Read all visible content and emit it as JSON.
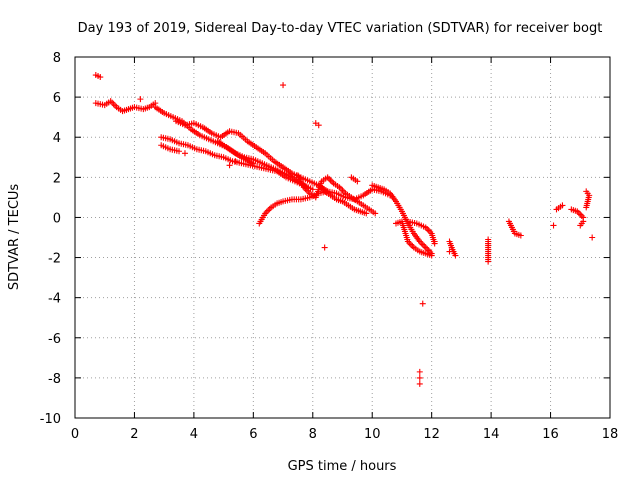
{
  "chart_data": {
    "type": "scatter",
    "title": "Day 193 of 2019, Sidereal Day-to-day VTEC variation (SDTVAR) for receiver bogt",
    "xlabel": "GPS time / hours",
    "ylabel": "SDTVAR / TECUs",
    "xlim": [
      0,
      18
    ],
    "ylim": [
      -10,
      8
    ],
    "xticks": [
      0,
      2,
      4,
      6,
      8,
      10,
      12,
      14,
      16,
      18
    ],
    "yticks": [
      -10,
      -8,
      -6,
      -4,
      -2,
      0,
      2,
      4,
      6,
      8
    ],
    "grid": true,
    "marker": "+",
    "color": "#ff0000",
    "series": [
      {
        "name": "SDTVAR",
        "segments": [
          {
            "x": [
              0.7,
              0.85
            ],
            "y": [
              7.1,
              7.0
            ]
          },
          {
            "x": [
              0.7,
              1.0,
              1.2,
              1.4,
              1.6,
              1.8,
              2.0,
              2.3,
              2.5,
              2.7
            ],
            "y": [
              5.7,
              5.6,
              5.8,
              5.5,
              5.3,
              5.4,
              5.5,
              5.4,
              5.5,
              5.7
            ]
          },
          {
            "x": [
              2.7,
              3.0,
              3.3,
              3.6,
              3.9,
              4.2,
              4.5,
              4.8,
              5.1,
              5.4,
              5.7,
              6.0,
              6.3,
              6.6,
              6.9,
              7.2,
              7.5,
              7.8
            ],
            "y": [
              5.5,
              5.2,
              5.0,
              4.8,
              4.4,
              4.1,
              3.9,
              3.7,
              3.5,
              3.2,
              3.0,
              2.9,
              2.7,
              2.5,
              2.3,
              2.1,
              1.8,
              1.5
            ]
          },
          {
            "x": [
              2.9,
              3.2,
              3.5,
              3.8,
              4.1,
              4.4,
              4.7,
              5.0,
              5.3,
              5.6,
              5.9,
              6.2,
              6.5,
              6.8,
              7.1,
              7.4,
              7.7,
              8.0
            ],
            "y": [
              4.0,
              3.9,
              3.7,
              3.6,
              3.4,
              3.3,
              3.1,
              3.0,
              2.8,
              2.7,
              2.6,
              2.5,
              2.4,
              2.3,
              2.0,
              1.8,
              1.6,
              1.4
            ]
          },
          {
            "x": [
              3.4,
              3.7,
              4.0,
              4.3,
              4.6,
              4.9,
              5.2,
              5.5,
              5.8,
              6.1,
              6.4,
              6.7,
              7.0,
              7.3,
              7.6,
              7.9,
              8.2,
              8.5
            ],
            "y": [
              4.8,
              4.6,
              4.7,
              4.5,
              4.2,
              4.0,
              4.3,
              4.2,
              3.8,
              3.5,
              3.2,
              2.8,
              2.5,
              2.2,
              2.0,
              1.8,
              1.6,
              1.3
            ]
          },
          {
            "x": [
              2.9,
              3.2,
              3.5
            ],
            "y": [
              3.6,
              3.4,
              3.3
            ]
          },
          {
            "x": [
              4.8,
              5.2,
              5.6,
              6.0
            ],
            "y": [
              3.8,
              3.4,
              3.0,
              2.7
            ]
          },
          {
            "x": [
              6.2,
              6.4,
              6.6,
              6.8,
              7.0,
              7.3,
              7.6,
              7.9,
              8.2,
              8.5,
              8.8,
              9.1,
              9.4,
              9.7,
              10.0,
              10.3,
              10.6
            ],
            "y": [
              -0.3,
              0.2,
              0.5,
              0.7,
              0.8,
              0.9,
              0.9,
              1.0,
              1.2,
              1.3,
              1.2,
              1.0,
              0.9,
              1.1,
              1.4,
              1.3,
              1.1
            ]
          },
          {
            "x": [
              7.5,
              7.7,
              7.9,
              8.1,
              8.3,
              8.5,
              8.7,
              8.9,
              9.1,
              9.3,
              9.5,
              9.7,
              9.9,
              10.1
            ],
            "y": [
              2.1,
              1.5,
              1.2,
              1.0,
              1.8,
              2.0,
              1.7,
              1.5,
              1.2,
              1.0,
              0.8,
              0.6,
              0.4,
              0.2
            ]
          },
          {
            "x": [
              8.2,
              8.4,
              8.6,
              8.8,
              9.0,
              9.2,
              9.4,
              9.6,
              9.8
            ],
            "y": [
              1.6,
              1.3,
              1.1,
              0.9,
              0.8,
              0.6,
              0.4,
              0.3,
              0.2
            ]
          },
          {
            "x": [
              9.3,
              9.5
            ],
            "y": [
              2.0,
              1.8
            ]
          },
          {
            "x": [
              10.0,
              10.2,
              10.4,
              10.6,
              10.8,
              11.0,
              11.2,
              11.4,
              11.6,
              11.8,
              12.0
            ],
            "y": [
              1.6,
              1.5,
              1.4,
              1.2,
              0.8,
              0.3,
              -0.3,
              -0.8,
              -1.2,
              -1.5,
              -1.8
            ]
          },
          {
            "x": [
              10.8,
              11.0,
              11.2,
              11.4,
              11.6,
              11.8,
              12.0
            ],
            "y": [
              -0.3,
              -0.2,
              -1.2,
              -1.5,
              -1.7,
              -1.8,
              -1.9
            ]
          },
          {
            "x": [
              11.2,
              11.5,
              11.8,
              12.0,
              12.1
            ],
            "y": [
              -0.2,
              -0.3,
              -0.5,
              -0.8,
              -1.3
            ]
          },
          {
            "x": [
              12.6,
              12.7,
              12.8
            ],
            "y": [
              -1.2,
              -1.6,
              -1.9
            ]
          },
          {
            "x": [
              13.9,
              13.9,
              13.9,
              13.9
            ],
            "y": [
              -1.1,
              -1.5,
              -1.9,
              -2.2
            ]
          },
          {
            "x": [
              14.6,
              14.8,
              15.0
            ],
            "y": [
              -0.2,
              -0.8,
              -0.9
            ]
          },
          {
            "x": [
              16.2,
              16.4
            ],
            "y": [
              0.4,
              0.6
            ]
          },
          {
            "x": [
              16.7,
              16.9,
              17.1
            ],
            "y": [
              0.4,
              0.3,
              0.0
            ]
          },
          {
            "x": [
              17.2,
              17.3,
              17.2
            ],
            "y": [
              1.3,
              1.1,
              0.5
            ]
          },
          {
            "x": [
              17.0,
              17.1
            ],
            "y": [
              -0.4,
              -0.2
            ]
          }
        ],
        "points": [
          {
            "x": 7.0,
            "y": 6.6
          },
          {
            "x": 8.1,
            "y": 4.7
          },
          {
            "x": 8.2,
            "y": 4.6
          },
          {
            "x": 5.2,
            "y": 2.6
          },
          {
            "x": 5.4,
            "y": 2.8
          },
          {
            "x": 3.7,
            "y": 3.2
          },
          {
            "x": 2.2,
            "y": 5.9
          },
          {
            "x": 8.4,
            "y": -1.5
          },
          {
            "x": 11.7,
            "y": -4.3
          },
          {
            "x": 11.6,
            "y": -7.7
          },
          {
            "x": 11.6,
            "y": -8.0
          },
          {
            "x": 11.6,
            "y": -8.3
          },
          {
            "x": 16.1,
            "y": -0.4
          },
          {
            "x": 17.4,
            "y": -1.0
          },
          {
            "x": 12.1,
            "y": -1.2
          },
          {
            "x": 13.9,
            "y": -1.3
          },
          {
            "x": 12.6,
            "y": -1.7
          }
        ]
      }
    ]
  }
}
